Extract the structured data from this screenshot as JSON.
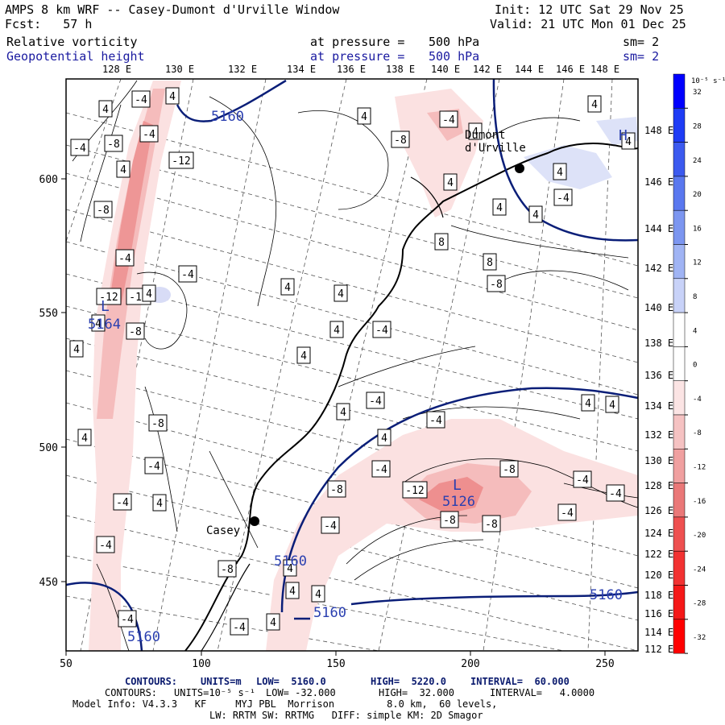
{
  "header": {
    "title": "AMPS 8 km WRF -- Casey-Dumont d'Urville Window",
    "init": "Init: 12 UTC Sat 29 Nov 25",
    "forecast": "Fcst:   57 h",
    "valid": "Valid: 21 UTC Mon 01 Dec 25",
    "field1_name": "Relative vorticity",
    "field1_level_label": "at pressure =",
    "field1_level": "500 hPa",
    "field1_sm": "sm= 2",
    "field2_name": "Geopotential height",
    "field2_level_label": "at pressure =",
    "field2_level": "500 hPa",
    "field2_sm": "sm= 2"
  },
  "longitude_labels_top": [
    "128 E",
    "130 E",
    "132 E",
    "134 E",
    "136 E",
    "138 E",
    "140 E",
    "142 E",
    "144 E",
    "146 E",
    "148 E"
  ],
  "longitude_labels_right": [
    "148 E",
    "146 E",
    "144 E",
    "142 E",
    "140 E",
    "138 E",
    "136 E",
    "134 E",
    "132 E",
    "130 E",
    "128 E",
    "126 E",
    "124 E",
    "122 E",
    "120 E",
    "118 E",
    "116 E",
    "114 E",
    "112 E"
  ],
  "x_axis_ticks": [
    "50",
    "100",
    "150",
    "200",
    "250"
  ],
  "y_axis_ticks": [
    "600",
    "550",
    "500",
    "450"
  ],
  "colorbar": {
    "unit_label": "10⁻⁵ s⁻¹",
    "ticks": [
      "32",
      "28",
      "24",
      "20",
      "16",
      "12",
      "8",
      "4",
      "0",
      "-4",
      "-8",
      "-12",
      "-16",
      "-20",
      "-24",
      "-28",
      "-32"
    ],
    "colors": [
      "#0000ff",
      "#1e3cf5",
      "#3c5aef",
      "#5a78ef",
      "#7c96f0",
      "#a0b4f4",
      "#c8d2f8",
      "#ffffff",
      "#ffffff",
      "#fbe4e4",
      "#f5c2c2",
      "#f0a0a0",
      "#ea7878",
      "#ee5050",
      "#f23232",
      "#f51818",
      "#ff0000"
    ]
  },
  "places": [
    {
      "name": "Casey",
      "label": "Casey"
    },
    {
      "name": "Dumont d'Urville",
      "label": "Dumont\nd'Urville"
    }
  ],
  "height_labels": [
    "5160",
    "5160",
    "5160",
    "5160",
    "5160",
    "5126",
    "5164"
  ],
  "extrema_labels": [
    "L",
    "L",
    "H"
  ],
  "vorticity_labels": [
    "4",
    "-4",
    "4",
    "-4",
    "-8",
    "-4",
    "-12",
    "4",
    "-8",
    "-4",
    "-12",
    "-12",
    "-4",
    "4",
    "-8",
    "4",
    "4",
    "4",
    "-4",
    "-8",
    "4",
    "4",
    "4",
    "4",
    "-4",
    "4",
    "4",
    "4",
    "8",
    "8",
    "-8",
    "4",
    "4",
    "4",
    "4",
    "-4",
    "4",
    "-4",
    "-4",
    "4",
    "4",
    "-4",
    "-4",
    "4",
    "-4",
    "-8",
    "-4",
    "-8",
    "-12",
    "-8",
    "-4",
    "-4",
    "-4",
    "-8",
    "-8",
    "-4",
    "4",
    "4",
    "4",
    "-4",
    "-8",
    "-4",
    "4",
    "4",
    "4"
  ],
  "footer": {
    "contours1_label": "CONTOURS:",
    "contours1_units": "UNITS=m",
    "contours1_low": "LOW=  5160.0",
    "contours1_high": "HIGH=  5220.0",
    "contours1_interval": "INTERVAL=  60.000",
    "contours2_label": "CONTOURS:",
    "contours2_units": "UNITS=10⁻⁵ s⁻¹",
    "contours2_low": "LOW= -32.000",
    "contours2_high": "HIGH=  32.000",
    "contours2_interval": "INTERVAL=   4.0000",
    "model_info": "Model Info: V4.3.3   KF     MYJ PBL  Morrison         8.0 km,  60 levels,",
    "model_info2": "LW: RRTM SW: RRTMG   DIFF: simple KM: 2D Smagor"
  }
}
